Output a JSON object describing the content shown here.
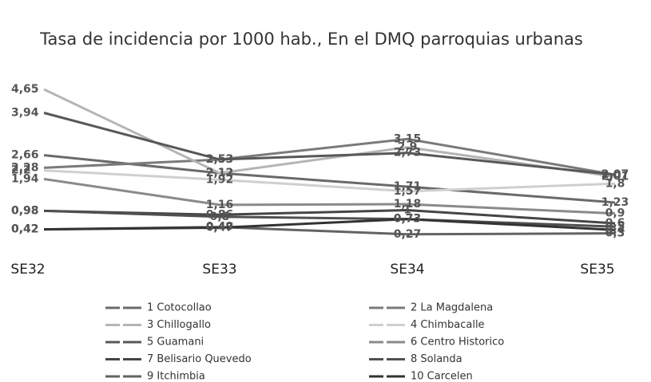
{
  "chart_data": {
    "type": "line",
    "title": "Tasa de incidencia por 1000 hab., En el DMQ parroquias urbanas",
    "categories": [
      "SE32",
      "SE33",
      "SE34",
      "SE35"
    ],
    "series": [
      {
        "name": "1 Cotocollao",
        "color": "#6a6a6a",
        "values": [
          2.66,
          2.12,
          1.71,
          1.23
        ],
        "value_labels": [
          "2,66",
          "2,12",
          "1,71",
          "1,23"
        ]
      },
      {
        "name": "2 La Magdalena",
        "color": "#7a7a7a",
        "values": [
          2.28,
          2.53,
          3.15,
          2.07
        ],
        "value_labels": [
          "2,28",
          "2,53",
          "3,15",
          "2,07"
        ]
      },
      {
        "name": "3 Chillogallo",
        "color": "#b5b5b5",
        "values": [
          4.65,
          2.12,
          2.9,
          2.01
        ],
        "value_labels": [
          "4,65",
          "2,12",
          "2,9",
          "2,01"
        ]
      },
      {
        "name": "4 Chimbacalle",
        "color": "#cfcfcf",
        "values": [
          2.2,
          1.92,
          1.57,
          1.8
        ],
        "value_labels": [
          "2,2",
          "1,92",
          "1,57",
          "1,8"
        ]
      },
      {
        "name": "5 Guamani",
        "color": "#585858",
        "values": [
          3.94,
          2.53,
          2.73,
          2.07
        ],
        "value_labels": [
          "3,94",
          "2,53",
          "2,73",
          "2,07"
        ]
      },
      {
        "name": "6 Centro Historico",
        "color": "#8a8a8a",
        "values": [
          1.94,
          1.16,
          1.18,
          0.9
        ],
        "value_labels": [
          "1,94",
          "1,16",
          "1,18",
          "0,9"
        ]
      },
      {
        "name": "7 Belisario Quevedo",
        "color": "#454545",
        "values": [
          0.98,
          0.86,
          1,
          0.6
        ],
        "value_labels": [
          "0,98",
          "0,86",
          "1",
          "0,6"
        ]
      },
      {
        "name": "8 Solanda",
        "color": "#505050",
        "values": [
          0.98,
          0.8,
          0.73,
          0.5
        ],
        "value_labels": [
          "0,98",
          "0,8",
          "0,73",
          "0,5"
        ]
      },
      {
        "name": "9 Itchimbia",
        "color": "#636363",
        "values": [
          0.42,
          0.49,
          0.27,
          0.3
        ],
        "value_labels": [
          "0,42",
          "0,49",
          "0,27",
          "0,3"
        ]
      },
      {
        "name": "10 Carcelen",
        "color": "#333333",
        "values": [
          0.42,
          0.47,
          0.73,
          0.4
        ],
        "value_labels": [
          "0,42",
          "0,47",
          "0,73",
          "0,4"
        ]
      }
    ]
  }
}
